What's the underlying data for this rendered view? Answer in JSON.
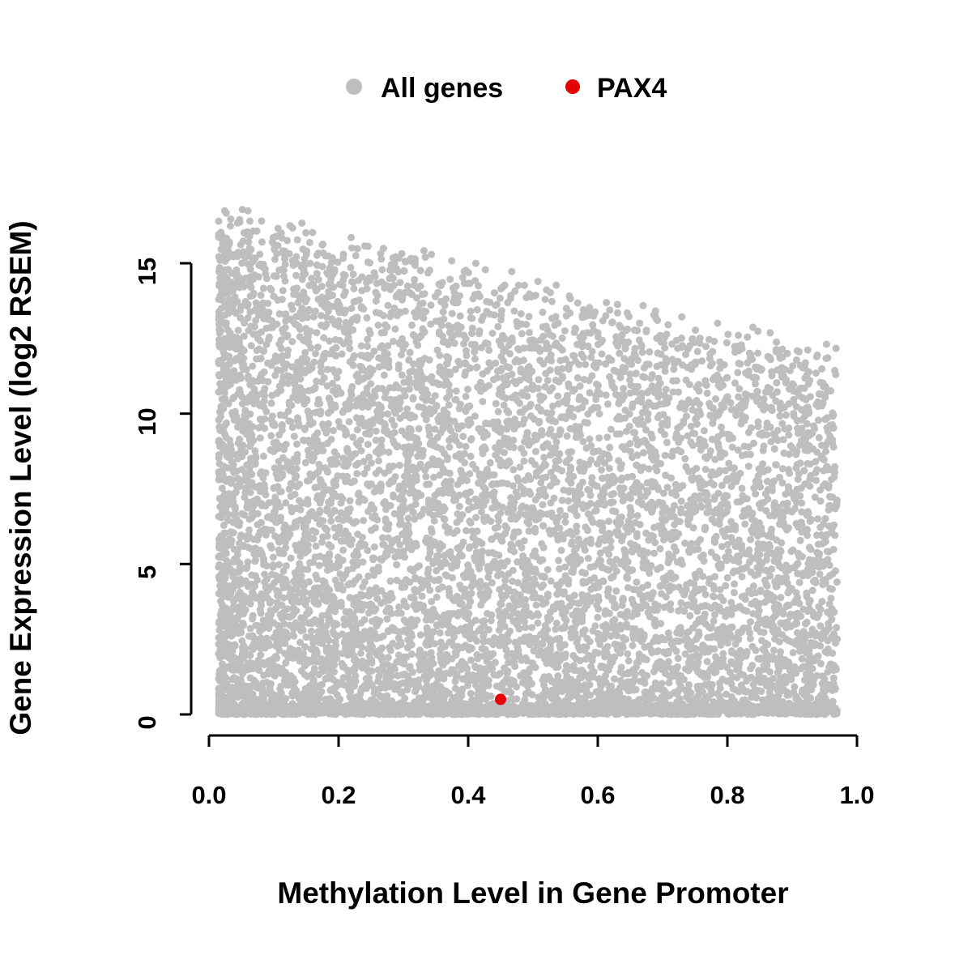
{
  "figure": {
    "background": "#ffffff"
  },
  "chart_data": {
    "type": "scatter",
    "title": "",
    "xlabel": "Methylation Level in Gene Promoter",
    "ylabel": "Gene Expression Level (log2 RSEM)",
    "xlim": [
      0.0,
      1.0
    ],
    "ylim": [
      0,
      16.8
    ],
    "x_ticks": [
      0.0,
      0.2,
      0.4,
      0.6,
      0.8,
      1.0
    ],
    "x_tick_labels": [
      "0.0",
      "0.2",
      "0.4",
      "0.6",
      "0.8",
      "1.0"
    ],
    "y_ticks": [
      0,
      5,
      10,
      15
    ],
    "y_tick_labels": [
      "0",
      "5",
      "10",
      "15"
    ],
    "grid": false,
    "legend": {
      "position": "top-center",
      "entries": [
        {
          "label": "All genes",
          "color": "#bebebe",
          "marker": "circle"
        },
        {
          "label": "PAX4",
          "color": "#e60000",
          "marker": "circle"
        }
      ]
    },
    "series": [
      {
        "name": "All genes",
        "color": "#bebebe",
        "marker_radius_px": 4.5,
        "point_count": 9000,
        "distribution": {
          "description": "dense gray cloud; methylation skewed toward low values; expression spans 0 up to an envelope declining from ~16.6 at x=0 to ~11.8 at x=0.97; dense band of points at y~0",
          "x_min": 0.015,
          "x_max": 0.97,
          "x_skew_fraction": 0.55,
          "x_skew_power": 1.6,
          "envelope_y_at_x0": 16.6,
          "envelope_slope": -5.0,
          "envelope_noise": 1.2,
          "y_power": 1.35,
          "baseline_fraction": 0.15,
          "baseline_max_y": 0.3,
          "seed": 42
        }
      },
      {
        "name": "PAX4",
        "color": "#e60000",
        "marker_radius_px": 7,
        "points": [
          [
            0.45,
            0.5
          ]
        ]
      }
    ]
  }
}
